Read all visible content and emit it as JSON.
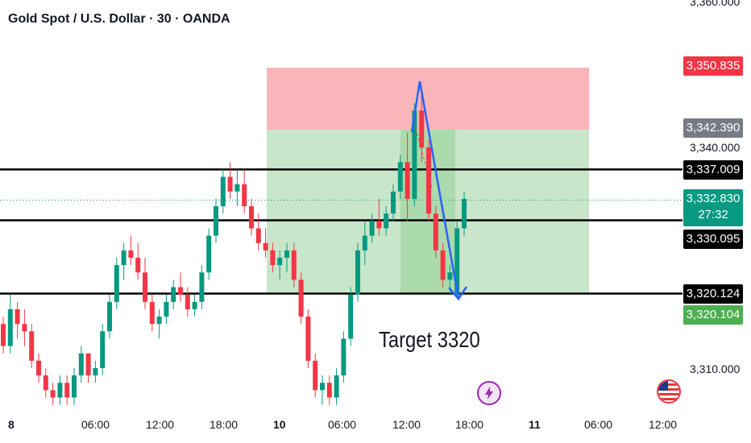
{
  "header": {
    "title": "Gold Spot / U.S. Dollar · 30 · OANDA"
  },
  "annotation": {
    "text": "Target 3320"
  },
  "colors": {
    "up": "#089981",
    "down": "#f23645",
    "line": "#000000",
    "profit_zone": "#c8e6c9",
    "stop_zone": "#f9b5ba",
    "arrow": "#2962ff"
  },
  "price_axis": {
    "ticks": [
      "3,360.000",
      "3,340.000",
      "3,310.000"
    ],
    "tags": {
      "stop": {
        "label": "3,350.835",
        "color": "#f23645"
      },
      "entry": {
        "label": "3,342.390",
        "color": "#787b86"
      },
      "level1": {
        "label": "3,337.009",
        "color": "#000000"
      },
      "current_price": "3,332.830",
      "countdown": "27:32",
      "current_color": "#089981",
      "level2": {
        "label": "3,330.095",
        "color": "#000000"
      },
      "level3": {
        "label": "3,320.124",
        "color": "#000000"
      },
      "target": {
        "label": "3,320.104",
        "color": "#4caf50"
      }
    }
  },
  "time_axis": {
    "labels": [
      "8",
      "06:00",
      "12:00",
      "18:00",
      "10",
      "06:00",
      "12:00",
      "18:00",
      "11",
      "06:00",
      "12:00"
    ]
  },
  "icons": {
    "event1": "lightning-icon",
    "event2": "us-flag-icon"
  },
  "chart_data": {
    "type": "candlestick",
    "symbol": "XAUUSD",
    "interval": "30",
    "ylim": [
      3305,
      3360
    ],
    "horizontal_levels": [
      3337.009,
      3330.095,
      3320.124
    ],
    "position_tool": {
      "entry": 3342.39,
      "stop": 3350.835,
      "target": 3320.104
    },
    "current_price": 3332.83,
    "candles": [
      [
        3316,
        3317,
        3312,
        3313
      ],
      [
        3313,
        3320,
        3312,
        3318
      ],
      [
        3318,
        3319,
        3314,
        3316
      ],
      [
        3316,
        3318,
        3313,
        3315
      ],
      [
        3315,
        3316,
        3310,
        3311
      ],
      [
        3311,
        3312,
        3308,
        3309
      ],
      [
        3309,
        3310,
        3306,
        3307
      ],
      [
        3307,
        3308,
        3305,
        3306
      ],
      [
        3306,
        3309,
        3305,
        3308
      ],
      [
        3308,
        3309,
        3305,
        3306
      ],
      [
        3306,
        3310,
        3305,
        3309
      ],
      [
        3309,
        3313,
        3308,
        3312
      ],
      [
        3312,
        3312,
        3308,
        3309
      ],
      [
        3309,
        3311,
        3308,
        3310
      ],
      [
        3310,
        3316,
        3309,
        3315
      ],
      [
        3315,
        3320,
        3314,
        3319
      ],
      [
        3319,
        3325,
        3318,
        3324
      ],
      [
        3324,
        3327,
        3322,
        3326
      ],
      [
        3326,
        3328,
        3324,
        3325
      ],
      [
        3325,
        3327,
        3322,
        3323
      ],
      [
        3323,
        3325,
        3318,
        3319
      ],
      [
        3319,
        3320,
        3315,
        3316
      ],
      [
        3316,
        3318,
        3314,
        3317
      ],
      [
        3317,
        3320,
        3316,
        3319
      ],
      [
        3319,
        3322,
        3318,
        3321
      ],
      [
        3321,
        3323,
        3319,
        3320
      ],
      [
        3320,
        3321,
        3317,
        3318
      ],
      [
        3318,
        3320,
        3317,
        3319
      ],
      [
        3319,
        3324,
        3318,
        3323
      ],
      [
        3323,
        3329,
        3322,
        3328
      ],
      [
        3328,
        3333,
        3327,
        3332
      ],
      [
        3332,
        3337,
        3331,
        3336
      ],
      [
        3336,
        3338,
        3333,
        3334
      ],
      [
        3334,
        3337,
        3332,
        3335
      ],
      [
        3335,
        3337,
        3331,
        3332
      ],
      [
        3332,
        3333,
        3328,
        3329
      ],
      [
        3329,
        3331,
        3326,
        3327
      ],
      [
        3327,
        3329,
        3325,
        3326
      ],
      [
        3326,
        3327,
        3323,
        3324
      ],
      [
        3324,
        3326,
        3322,
        3325
      ],
      [
        3325,
        3327,
        3323,
        3326
      ],
      [
        3326,
        3327,
        3321,
        3322
      ],
      [
        3322,
        3323,
        3316,
        3317
      ],
      [
        3317,
        3318,
        3310,
        3311
      ],
      [
        3311,
        3312,
        3306,
        3307
      ],
      [
        3307,
        3309,
        3305,
        3308
      ],
      [
        3308,
        3309,
        3305,
        3306
      ],
      [
        3306,
        3310,
        3305,
        3309
      ],
      [
        3309,
        3315,
        3308,
        3314
      ],
      [
        3314,
        3321,
        3313,
        3320
      ],
      [
        3320,
        3327,
        3319,
        3326
      ],
      [
        3326,
        3330,
        3324,
        3328
      ],
      [
        3328,
        3331,
        3327,
        3330
      ],
      [
        3330,
        3333,
        3328,
        3329
      ],
      [
        3329,
        3332,
        3328,
        3331
      ],
      [
        3331,
        3335,
        3330,
        3334
      ],
      [
        3334,
        3339,
        3333,
        3338
      ],
      [
        3338,
        3342,
        3330,
        3333
      ],
      [
        3333,
        3346,
        3332,
        3345
      ],
      [
        3345,
        3348,
        3338,
        3340
      ],
      [
        3340,
        3341,
        3330,
        3331
      ],
      [
        3331,
        3332,
        3325,
        3326
      ],
      [
        3326,
        3327,
        3321,
        3322
      ],
      [
        3322,
        3324,
        3320,
        3323
      ],
      [
        3320,
        3330,
        3320,
        3329
      ],
      [
        3329,
        3334,
        3328,
        3333
      ]
    ]
  }
}
